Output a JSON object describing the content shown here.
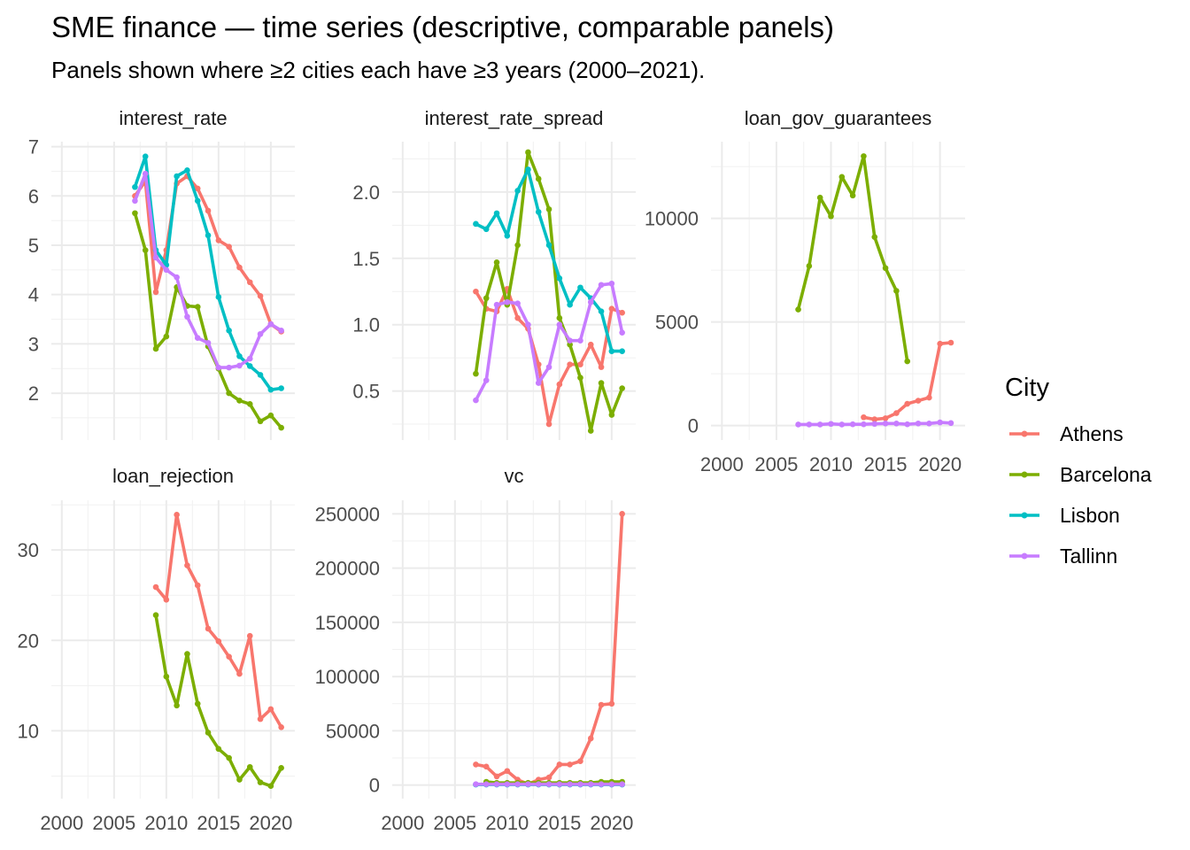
{
  "title": "SME finance — time series (descriptive, comparable panels)",
  "subtitle": "Panels shown where ≥2 cities each have ≥3 years (2000–2021).",
  "legend": {
    "title": "City",
    "placement": "right",
    "items": [
      {
        "name": "Athens",
        "color": "#F8766D"
      },
      {
        "name": "Barcelona",
        "color": "#7CAE00"
      },
      {
        "name": "Lisbon",
        "color": "#00BFC4"
      },
      {
        "name": "Tallinn",
        "color": "#C77CFF"
      }
    ]
  },
  "chart_data": [
    {
      "type": "line",
      "title": "interest_rate",
      "xlim": [
        1999,
        2022.3
      ],
      "ylim": [
        1.05,
        7.1
      ],
      "xticks": [
        2000,
        2005,
        2010,
        2015,
        2020
      ],
      "xtick_labels": [
        "2000",
        "2005",
        "2010",
        "2015",
        "2020"
      ],
      "yticks": [
        2,
        3,
        4,
        5,
        6,
        7
      ],
      "ytick_labels": [
        "2",
        "3",
        "4",
        "5",
        "6",
        "7"
      ],
      "show_x_labels": false,
      "grid": true,
      "series": [
        {
          "name": "Athens",
          "x": [
            2007,
            2008,
            2009,
            2010,
            2011,
            2012,
            2013,
            2014,
            2015,
            2016,
            2017,
            2018,
            2019,
            2020,
            2021
          ],
          "values": [
            6.0,
            6.3,
            4.05,
            4.9,
            6.25,
            6.4,
            6.15,
            5.7,
            5.1,
            4.97,
            4.55,
            4.25,
            3.97,
            3.4,
            3.25
          ]
        },
        {
          "name": "Barcelona",
          "x": [
            2007,
            2008,
            2009,
            2010,
            2011,
            2012,
            2013,
            2014,
            2015,
            2016,
            2017,
            2018,
            2019,
            2020,
            2021
          ],
          "values": [
            5.65,
            4.9,
            2.9,
            3.15,
            4.15,
            3.77,
            3.75,
            2.95,
            2.5,
            2.0,
            1.85,
            1.78,
            1.43,
            1.55,
            1.3
          ]
        },
        {
          "name": "Lisbon",
          "x": [
            2007,
            2008,
            2009,
            2010,
            2011,
            2012,
            2013,
            2014,
            2015,
            2016,
            2017,
            2018,
            2019,
            2020,
            2021
          ],
          "values": [
            6.18,
            6.8,
            4.9,
            4.6,
            6.4,
            6.52,
            5.9,
            5.2,
            3.95,
            3.27,
            2.75,
            2.55,
            2.37,
            2.07,
            2.1
          ]
        },
        {
          "name": "Tallinn",
          "x": [
            2007,
            2008,
            2009,
            2010,
            2011,
            2012,
            2013,
            2014,
            2015,
            2016,
            2017,
            2018,
            2019,
            2020,
            2021
          ],
          "values": [
            5.9,
            6.45,
            4.75,
            4.5,
            4.35,
            3.55,
            3.12,
            3.02,
            2.52,
            2.52,
            2.56,
            2.7,
            3.2,
            3.4,
            3.27
          ]
        }
      ]
    },
    {
      "type": "line",
      "title": "interest_rate_spread",
      "xlim": [
        1999,
        2022.3
      ],
      "ylim": [
        0.13,
        2.38
      ],
      "xticks": [
        2000,
        2005,
        2010,
        2015,
        2020
      ],
      "xtick_labels": [
        "2000",
        "2005",
        "2010",
        "2015",
        "2020"
      ],
      "yticks": [
        0.5,
        1.0,
        1.5,
        2.0
      ],
      "ytick_labels": [
        "0.5",
        "1.0",
        "1.5",
        "2.0"
      ],
      "show_x_labels": false,
      "grid": true,
      "series": [
        {
          "name": "Athens",
          "x": [
            2007,
            2008,
            2009,
            2010,
            2011,
            2012,
            2013,
            2014,
            2015,
            2016,
            2017,
            2018,
            2019,
            2020,
            2021
          ],
          "values": [
            1.25,
            1.12,
            1.1,
            1.27,
            1.05,
            0.97,
            0.7,
            0.25,
            0.55,
            0.7,
            0.7,
            0.85,
            0.68,
            1.12,
            1.09
          ]
        },
        {
          "name": "Barcelona",
          "x": [
            2007,
            2008,
            2009,
            2010,
            2011,
            2012,
            2013,
            2014,
            2015,
            2016,
            2017,
            2018,
            2019,
            2020,
            2021
          ],
          "values": [
            0.63,
            1.2,
            1.47,
            1.15,
            1.6,
            2.3,
            2.1,
            1.87,
            1.05,
            0.85,
            0.6,
            0.2,
            0.56,
            0.32,
            0.52
          ]
        },
        {
          "name": "Lisbon",
          "x": [
            2007,
            2008,
            2009,
            2010,
            2011,
            2012,
            2013,
            2014,
            2015,
            2016,
            2017,
            2018,
            2019,
            2020,
            2021
          ],
          "values": [
            1.76,
            1.72,
            1.84,
            1.67,
            2.01,
            2.17,
            1.85,
            1.6,
            1.35,
            1.15,
            1.28,
            1.2,
            1.1,
            0.8,
            0.8
          ]
        },
        {
          "name": "Tallinn",
          "x": [
            2007,
            2008,
            2009,
            2010,
            2011,
            2012,
            2013,
            2014,
            2015,
            2016,
            2017,
            2018,
            2019,
            2020,
            2021
          ],
          "values": [
            0.43,
            0.58,
            1.15,
            1.17,
            1.16,
            1.0,
            0.56,
            0.68,
            1.0,
            0.88,
            0.88,
            1.17,
            1.3,
            1.31,
            0.94
          ]
        }
      ]
    },
    {
      "type": "line",
      "title": "loan_gov_guarantees",
      "xlim": [
        1999,
        2022.3
      ],
      "ylim": [
        -700,
        13700
      ],
      "xticks": [
        2000,
        2005,
        2010,
        2015,
        2020
      ],
      "xtick_labels": [
        "2000",
        "2005",
        "2010",
        "2015",
        "2020"
      ],
      "yticks": [
        0,
        5000,
        10000
      ],
      "ytick_labels": [
        "0",
        "5000",
        "10000"
      ],
      "show_x_labels": true,
      "grid": true,
      "series": [
        {
          "name": "Athens",
          "x": [
            2013,
            2014,
            2015,
            2016,
            2017,
            2018,
            2019,
            2020,
            2021
          ],
          "values": [
            400,
            300,
            350,
            600,
            1050,
            1200,
            1350,
            3950,
            4000
          ]
        },
        {
          "name": "Barcelona",
          "x": [
            2007,
            2008,
            2009,
            2010,
            2011,
            2012,
            2013,
            2014,
            2015,
            2016,
            2017
          ],
          "values": [
            5600,
            7700,
            11000,
            10100,
            12000,
            11100,
            13000,
            9100,
            7600,
            6500,
            3100
          ]
        },
        {
          "name": "Tallinn",
          "x": [
            2007,
            2008,
            2009,
            2010,
            2011,
            2012,
            2013,
            2014,
            2015,
            2016,
            2017,
            2018,
            2019,
            2020,
            2021
          ],
          "values": [
            50,
            50,
            50,
            80,
            50,
            60,
            60,
            80,
            100,
            100,
            60,
            100,
            100,
            150,
            120
          ]
        }
      ]
    },
    {
      "type": "line",
      "title": "loan_rejection",
      "xlim": [
        1999,
        2022.3
      ],
      "ylim": [
        2.5,
        35.5
      ],
      "xticks": [
        2000,
        2005,
        2010,
        2015,
        2020
      ],
      "xtick_labels": [
        "2000",
        "2005",
        "2010",
        "2015",
        "2020"
      ],
      "yticks": [
        10,
        20,
        30
      ],
      "ytick_labels": [
        "10",
        "20",
        "30"
      ],
      "show_x_labels": true,
      "grid": true,
      "series": [
        {
          "name": "Athens",
          "x": [
            2009,
            2010,
            2011,
            2012,
            2013,
            2014,
            2015,
            2016,
            2017,
            2018,
            2019,
            2020,
            2021
          ],
          "values": [
            25.9,
            24.5,
            33.9,
            28.3,
            26.1,
            21.3,
            19.9,
            18.2,
            16.3,
            20.5,
            11.3,
            12.4,
            10.4
          ]
        },
        {
          "name": "Barcelona",
          "x": [
            2009,
            2010,
            2011,
            2012,
            2013,
            2014,
            2015,
            2016,
            2017,
            2018,
            2019,
            2020,
            2021
          ],
          "values": [
            22.8,
            16.0,
            12.8,
            18.5,
            13.0,
            9.8,
            8.0,
            7.0,
            4.6,
            6.0,
            4.3,
            3.9,
            5.9
          ]
        }
      ]
    },
    {
      "type": "line",
      "title": "vc",
      "xlim": [
        1999,
        2022.3
      ],
      "ylim": [
        -12500,
        262500
      ],
      "xticks": [
        2000,
        2005,
        2010,
        2015,
        2020
      ],
      "xtick_labels": [
        "2000",
        "2005",
        "2010",
        "2015",
        "2020"
      ],
      "yticks": [
        0,
        50000,
        100000,
        150000,
        200000,
        250000
      ],
      "ytick_labels": [
        "0",
        "50000",
        "100000",
        "150000",
        "200000",
        "250000"
      ],
      "show_x_labels": true,
      "grid": true,
      "series": [
        {
          "name": "Athens",
          "x": [
            2007,
            2008,
            2009,
            2010,
            2011,
            2012,
            2013,
            2014,
            2015,
            2016,
            2017,
            2018,
            2019,
            2020,
            2021
          ],
          "values": [
            19000,
            17000,
            8000,
            13000,
            5000,
            1000,
            5000,
            7000,
            19000,
            19000,
            22000,
            43000,
            74000,
            75000,
            250000
          ]
        },
        {
          "name": "Barcelona",
          "x": [
            2008,
            2009,
            2010,
            2011,
            2012,
            2013,
            2014,
            2015,
            2016,
            2017,
            2018,
            2019,
            2020,
            2021
          ],
          "values": [
            3000,
            2000,
            2000,
            2000,
            2000,
            2000,
            2000,
            2000,
            2000,
            2000,
            2000,
            3000,
            3000,
            3000
          ]
        },
        {
          "name": "Lisbon",
          "x": [
            2007,
            2008,
            2009,
            2010,
            2011,
            2012,
            2013,
            2014,
            2015,
            2016,
            2017,
            2018,
            2019,
            2020,
            2021
          ],
          "values": [
            500,
            500,
            500,
            500,
            500,
            500,
            500,
            500,
            500,
            500,
            500,
            500,
            500,
            500,
            500
          ]
        },
        {
          "name": "Tallinn",
          "x": [
            2007,
            2008,
            2009,
            2010,
            2011,
            2012,
            2013,
            2014,
            2015,
            2016,
            2017,
            2018,
            2019,
            2020,
            2021
          ],
          "values": [
            800,
            800,
            800,
            800,
            800,
            800,
            800,
            800,
            800,
            800,
            800,
            800,
            800,
            800,
            800
          ]
        }
      ]
    }
  ]
}
